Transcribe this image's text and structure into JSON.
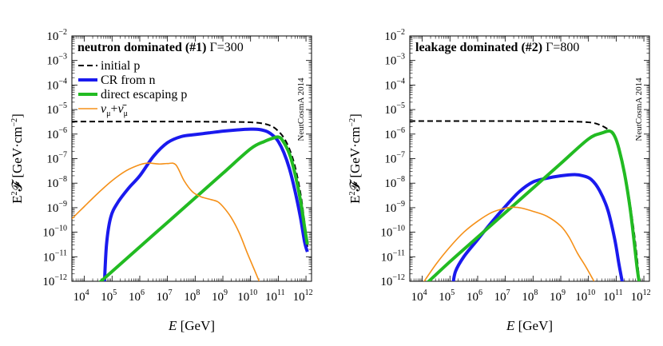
{
  "chart_data": [
    {
      "type": "line",
      "panel": "#1",
      "title": "neutron dominated (#1)",
      "gamma_label": "Γ=300",
      "watermark": "NeutCosmA 2014",
      "xlabel": "E [GeV]",
      "ylabel": "E²𝓕 [GeV·cm⁻²]",
      "xscale": "log",
      "yscale": "log",
      "xlim_log10": [
        3.55,
        12.2
      ],
      "ylim_log10": [
        -12,
        -2
      ],
      "x_ticks_log10": [
        4,
        5,
        6,
        7,
        8,
        9,
        10,
        11,
        12
      ],
      "y_ticks_log10": [
        -2,
        -3,
        -4,
        -5,
        -6,
        -7,
        -8,
        -9,
        -10,
        -11,
        -12
      ],
      "legend": {
        "placement": "top-left",
        "entries": [
          {
            "label": "initial p",
            "series": "initial_p"
          },
          {
            "label": "CR from n",
            "series": "cr_from_n"
          },
          {
            "label": "direct escaping p",
            "series": "direct_escaping_p"
          },
          {
            "label": "ν_μ+ν̄_μ",
            "series": "nu_mu"
          }
        ]
      },
      "series": [
        {
          "id": "initial_p",
          "name": "initial p",
          "color": "#000000",
          "style": "dashed",
          "points_log10": [
            [
              3.55,
              -5.49
            ],
            [
              5,
              -5.49
            ],
            [
              7,
              -5.49
            ],
            [
              9,
              -5.5
            ],
            [
              10,
              -5.52
            ],
            [
              10.5,
              -5.58
            ],
            [
              10.8,
              -5.7
            ],
            [
              11,
              -5.88
            ],
            [
              11.2,
              -6.15
            ],
            [
              11.4,
              -6.6
            ],
            [
              11.6,
              -7.3
            ],
            [
              11.8,
              -8.4
            ],
            [
              11.95,
              -9.6
            ],
            [
              12.05,
              -10.6
            ]
          ]
        },
        {
          "id": "cr_from_n",
          "name": "CR from n",
          "color": "#1a1aee",
          "style": "thick",
          "points_log10": [
            [
              4.72,
              -12.2
            ],
            [
              4.8,
              -10.5
            ],
            [
              4.95,
              -9.4
            ],
            [
              5.2,
              -8.8
            ],
            [
              5.6,
              -8.2
            ],
            [
              6,
              -7.7
            ],
            [
              6.5,
              -6.9
            ],
            [
              7,
              -6.35
            ],
            [
              7.5,
              -6.1
            ],
            [
              8,
              -6.02
            ],
            [
              8.5,
              -5.95
            ],
            [
              9,
              -5.88
            ],
            [
              9.5,
              -5.83
            ],
            [
              10,
              -5.8
            ],
            [
              10.3,
              -5.81
            ],
            [
              10.6,
              -5.9
            ],
            [
              10.85,
              -6.1
            ],
            [
              11,
              -6.3
            ],
            [
              11.2,
              -6.75
            ],
            [
              11.4,
              -7.4
            ],
            [
              11.6,
              -8.3
            ],
            [
              11.8,
              -9.4
            ],
            [
              11.95,
              -10.4
            ],
            [
              12.05,
              -10.8
            ]
          ]
        },
        {
          "id": "direct_escaping_p",
          "name": "direct escaping p",
          "color": "#22bb22",
          "style": "thick",
          "points_log10": [
            [
              4.55,
              -12.05
            ],
            [
              5,
              -11.6
            ],
            [
              6,
              -10.6
            ],
            [
              7,
              -9.6
            ],
            [
              8,
              -8.6
            ],
            [
              9,
              -7.6
            ],
            [
              10,
              -6.6
            ],
            [
              10.5,
              -6.3
            ],
            [
              10.85,
              -6.15
            ],
            [
              11,
              -6.12
            ],
            [
              11.15,
              -6.25
            ],
            [
              11.4,
              -6.8
            ],
            [
              11.6,
              -7.6
            ],
            [
              11.8,
              -8.7
            ],
            [
              11.95,
              -9.8
            ],
            [
              12.05,
              -10.5
            ]
          ]
        },
        {
          "id": "nu_mu",
          "name": "ν_μ+ν̄_μ",
          "color": "#f59018",
          "style": "thin",
          "points_log10": [
            [
              3.55,
              -9.45
            ],
            [
              4,
              -8.95
            ],
            [
              4.5,
              -8.4
            ],
            [
              5,
              -7.9
            ],
            [
              5.5,
              -7.5
            ],
            [
              6,
              -7.25
            ],
            [
              6.3,
              -7.18
            ],
            [
              6.7,
              -7.22
            ],
            [
              7,
              -7.2
            ],
            [
              7.3,
              -7.25
            ],
            [
              7.6,
              -7.9
            ],
            [
              7.9,
              -8.35
            ],
            [
              8.2,
              -8.55
            ],
            [
              8.5,
              -8.65
            ],
            [
              8.8,
              -8.75
            ],
            [
              9,
              -8.95
            ],
            [
              9.3,
              -9.4
            ],
            [
              9.6,
              -10.05
            ],
            [
              9.9,
              -10.9
            ],
            [
              10.2,
              -11.7
            ],
            [
              10.38,
              -12.2
            ]
          ]
        }
      ]
    },
    {
      "type": "line",
      "panel": "#2",
      "title": "leakage dominated (#2)",
      "gamma_label": "Γ=800",
      "watermark": "NeutCosmA 2014",
      "xlabel": "E [GeV]",
      "ylabel": "E²𝓕 [GeV·cm⁻²]",
      "xscale": "log",
      "yscale": "log",
      "xlim_log10": [
        3.55,
        12.2
      ],
      "ylim_log10": [
        -12,
        -2
      ],
      "x_ticks_log10": [
        4,
        5,
        6,
        7,
        8,
        9,
        10,
        11,
        12
      ],
      "y_ticks_log10": [
        -2,
        -3,
        -4,
        -5,
        -6,
        -7,
        -8,
        -9,
        -10,
        -11,
        -12
      ],
      "series": [
        {
          "id": "initial_p",
          "name": "initial p",
          "color": "#000000",
          "style": "dashed",
          "points_log10": [
            [
              3.55,
              -5.47
            ],
            [
              5,
              -5.47
            ],
            [
              7,
              -5.47
            ],
            [
              9,
              -5.48
            ],
            [
              10,
              -5.52
            ],
            [
              10.4,
              -5.62
            ],
            [
              10.7,
              -5.8
            ],
            [
              10.85,
              -5.95
            ],
            [
              11,
              -6.25
            ],
            [
              11.2,
              -7.0
            ],
            [
              11.4,
              -8.1
            ],
            [
              11.6,
              -9.6
            ],
            [
              11.75,
              -11.0
            ],
            [
              11.85,
              -12.2
            ]
          ]
        },
        {
          "id": "cr_from_n",
          "name": "CR from n",
          "color": "#1a1aee",
          "style": "thick",
          "points_log10": [
            [
              5.1,
              -12.2
            ],
            [
              5.2,
              -11.6
            ],
            [
              5.5,
              -11.0
            ],
            [
              6,
              -10.3
            ],
            [
              6.5,
              -9.6
            ],
            [
              7,
              -8.95
            ],
            [
              7.5,
              -8.35
            ],
            [
              8,
              -7.95
            ],
            [
              8.5,
              -7.8
            ],
            [
              9,
              -7.7
            ],
            [
              9.5,
              -7.65
            ],
            [
              9.8,
              -7.7
            ],
            [
              10.1,
              -7.85
            ],
            [
              10.4,
              -8.3
            ],
            [
              10.7,
              -9.1
            ],
            [
              10.95,
              -10.3
            ],
            [
              11.1,
              -11.3
            ],
            [
              11.25,
              -12.2
            ]
          ]
        },
        {
          "id": "direct_escaping_p",
          "name": "direct escaping p",
          "color": "#22bb22",
          "style": "thick",
          "points_log10": [
            [
              4.05,
              -12.2
            ],
            [
              5,
              -11.2
            ],
            [
              6,
              -10.2
            ],
            [
              7,
              -9.2
            ],
            [
              8,
              -8.2
            ],
            [
              9,
              -7.2
            ],
            [
              10,
              -6.2
            ],
            [
              10.5,
              -5.95
            ],
            [
              10.78,
              -5.88
            ],
            [
              10.95,
              -6.1
            ],
            [
              11.1,
              -6.6
            ],
            [
              11.3,
              -7.6
            ],
            [
              11.5,
              -9.0
            ],
            [
              11.65,
              -10.4
            ],
            [
              11.75,
              -11.4
            ],
            [
              11.85,
              -12.2
            ]
          ]
        },
        {
          "id": "nu_mu",
          "name": "ν_μ+ν̄_μ",
          "color": "#f59018",
          "style": "thin",
          "points_log10": [
            [
              3.95,
              -12.2
            ],
            [
              4.5,
              -11.3
            ],
            [
              5,
              -10.6
            ],
            [
              5.5,
              -10.0
            ],
            [
              6,
              -9.55
            ],
            [
              6.5,
              -9.2
            ],
            [
              7,
              -9.02
            ],
            [
              7.3,
              -8.98
            ],
            [
              7.6,
              -9.02
            ],
            [
              8,
              -9.15
            ],
            [
              8.5,
              -9.35
            ],
            [
              9,
              -9.75
            ],
            [
              9.3,
              -10.2
            ],
            [
              9.6,
              -10.85
            ],
            [
              9.9,
              -11.4
            ],
            [
              10.2,
              -12.0
            ],
            [
              10.3,
              -12.2
            ]
          ]
        }
      ]
    }
  ]
}
